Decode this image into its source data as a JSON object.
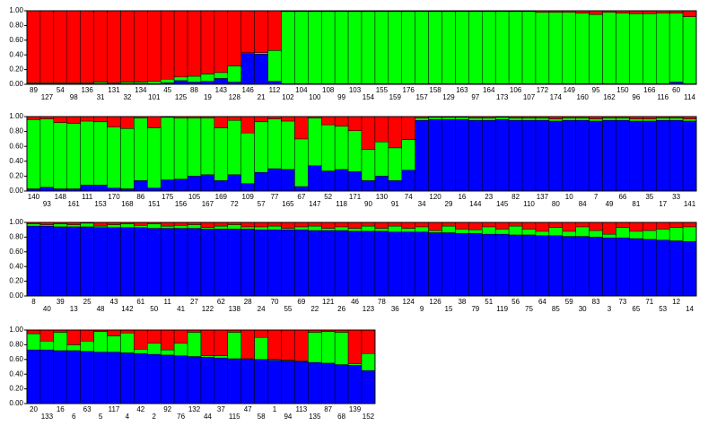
{
  "chart_data": [
    {
      "type": "bar",
      "stacked": true,
      "categories": [
        "89",
        "127",
        "54",
        "98",
        "136",
        "31",
        "131",
        "32",
        "134",
        "101",
        "45",
        "125",
        "88",
        "19",
        "143",
        "128",
        "146",
        "21",
        "112",
        "102",
        "104",
        "100",
        "108",
        "99",
        "103",
        "154",
        "155",
        "159",
        "176",
        "157",
        "158",
        "129",
        "163",
        "97",
        "164",
        "173",
        "106",
        "107",
        "172",
        "174",
        "149",
        "160",
        "95",
        "162",
        "150",
        "96",
        "166",
        "116",
        "60",
        "114"
      ],
      "series": [
        {
          "color": "#0000ff",
          "values": [
            0.01,
            0.01,
            0.01,
            0.01,
            0.01,
            0.01,
            0.01,
            0.01,
            0.01,
            0.01,
            0.02,
            0.05,
            0.03,
            0.04,
            0.08,
            0.03,
            0.42,
            0.41,
            0.04,
            0.01,
            0.01,
            0.01,
            0.01,
            0.01,
            0.01,
            0.01,
            0.01,
            0.01,
            0.01,
            0.01,
            0.01,
            0.01,
            0.01,
            0.01,
            0.01,
            0.01,
            0.01,
            0.01,
            0.01,
            0.01,
            0.01,
            0.01,
            0.01,
            0.01,
            0.01,
            0.01,
            0.01,
            0.01,
            0.03,
            0.01
          ]
        },
        {
          "color": "#00ff00",
          "values": [
            0.01,
            0.01,
            0.01,
            0.01,
            0.01,
            0.02,
            0.01,
            0.02,
            0.02,
            0.03,
            0.05,
            0.05,
            0.08,
            0.1,
            0.08,
            0.22,
            0.01,
            0.02,
            0.42,
            0.98,
            0.98,
            0.98,
            0.98,
            0.98,
            0.98,
            0.98,
            0.98,
            0.98,
            0.98,
            0.98,
            0.98,
            0.98,
            0.98,
            0.98,
            0.98,
            0.98,
            0.98,
            0.98,
            0.97,
            0.97,
            0.97,
            0.96,
            0.94,
            0.97,
            0.96,
            0.95,
            0.95,
            0.96,
            0.94,
            0.91
          ]
        },
        {
          "color": "#ff0000",
          "values": [
            0.98,
            0.98,
            0.98,
            0.98,
            0.98,
            0.97,
            0.98,
            0.97,
            0.97,
            0.96,
            0.93,
            0.9,
            0.89,
            0.86,
            0.84,
            0.75,
            0.57,
            0.57,
            0.54,
            0.01,
            0.01,
            0.01,
            0.01,
            0.01,
            0.01,
            0.01,
            0.01,
            0.01,
            0.01,
            0.01,
            0.01,
            0.01,
            0.01,
            0.01,
            0.01,
            0.01,
            0.01,
            0.01,
            0.02,
            0.02,
            0.02,
            0.03,
            0.05,
            0.02,
            0.03,
            0.04,
            0.04,
            0.03,
            0.03,
            0.08
          ]
        }
      ],
      "ylim": [
        0,
        1
      ],
      "yticks": [
        {
          "value": 0,
          "label": "0.00"
        },
        {
          "value": 0.2,
          "label": "0.20"
        },
        {
          "value": 0.4,
          "label": "0.40"
        },
        {
          "value": 0.6,
          "label": "0.60"
        },
        {
          "value": 0.8,
          "label": "0.80"
        },
        {
          "value": 1,
          "label": "1.00"
        }
      ]
    },
    {
      "type": "bar",
      "stacked": true,
      "categories": [
        "140",
        "93",
        "148",
        "161",
        "111",
        "153",
        "170",
        "168",
        "86",
        "151",
        "175",
        "156",
        "105",
        "167",
        "169",
        "72",
        "109",
        "57",
        "77",
        "165",
        "67",
        "147",
        "52",
        "118",
        "171",
        "90",
        "130",
        "91",
        "74",
        "34",
        "120",
        "29",
        "16",
        "144",
        "23",
        "145",
        "82",
        "110",
        "137",
        "80",
        "10",
        "84",
        "7",
        "49",
        "66",
        "81",
        "35",
        "17",
        "33",
        "141"
      ],
      "series": [
        {
          "color": "#0000ff",
          "values": [
            0.03,
            0.05,
            0.03,
            0.03,
            0.08,
            0.08,
            0.04,
            0.03,
            0.14,
            0.04,
            0.15,
            0.16,
            0.2,
            0.22,
            0.14,
            0.22,
            0.1,
            0.25,
            0.3,
            0.29,
            0.06,
            0.34,
            0.27,
            0.29,
            0.26,
            0.14,
            0.2,
            0.14,
            0.28,
            0.95,
            0.96,
            0.96,
            0.96,
            0.95,
            0.95,
            0.96,
            0.95,
            0.95,
            0.95,
            0.94,
            0.95,
            0.95,
            0.94,
            0.95,
            0.95,
            0.94,
            0.94,
            0.95,
            0.95,
            0.94
          ]
        },
        {
          "color": "#00ff00",
          "values": [
            0.93,
            0.92,
            0.89,
            0.88,
            0.86,
            0.85,
            0.82,
            0.81,
            0.84,
            0.81,
            0.84,
            0.82,
            0.78,
            0.76,
            0.71,
            0.73,
            0.68,
            0.68,
            0.67,
            0.65,
            0.64,
            0.64,
            0.62,
            0.58,
            0.55,
            0.42,
            0.46,
            0.44,
            0.41,
            0.03,
            0.03,
            0.03,
            0.03,
            0.03,
            0.03,
            0.03,
            0.03,
            0.03,
            0.03,
            0.03,
            0.03,
            0.03,
            0.03,
            0.03,
            0.03,
            0.03,
            0.03,
            0.03,
            0.03,
            0.03
          ]
        },
        {
          "color": "#ff0000",
          "values": [
            0.04,
            0.03,
            0.08,
            0.09,
            0.06,
            0.07,
            0.14,
            0.16,
            0.02,
            0.15,
            0.01,
            0.02,
            0.02,
            0.02,
            0.15,
            0.05,
            0.22,
            0.07,
            0.03,
            0.06,
            0.3,
            0.02,
            0.11,
            0.13,
            0.19,
            0.44,
            0.34,
            0.42,
            0.31,
            0.02,
            0.01,
            0.01,
            0.01,
            0.02,
            0.02,
            0.01,
            0.02,
            0.02,
            0.02,
            0.03,
            0.02,
            0.02,
            0.03,
            0.02,
            0.02,
            0.03,
            0.03,
            0.02,
            0.02,
            0.03
          ]
        }
      ],
      "ylim": [
        0,
        1
      ],
      "yticks": [
        {
          "value": 0,
          "label": "0.00"
        },
        {
          "value": 0.2,
          "label": "0.20"
        },
        {
          "value": 0.4,
          "label": "0.40"
        },
        {
          "value": 0.6,
          "label": "0.60"
        },
        {
          "value": 0.8,
          "label": "0.80"
        },
        {
          "value": 1,
          "label": "1.00"
        }
      ]
    },
    {
      "type": "bar",
      "stacked": true,
      "categories": [
        "8",
        "40",
        "39",
        "13",
        "25",
        "48",
        "43",
        "142",
        "61",
        "50",
        "11",
        "41",
        "27",
        "122",
        "62",
        "138",
        "28",
        "24",
        "70",
        "55",
        "69",
        "22",
        "121",
        "26",
        "46",
        "123",
        "78",
        "36",
        "124",
        "9",
        "126",
        "15",
        "38",
        "79",
        "51",
        "119",
        "56",
        "75",
        "64",
        "85",
        "59",
        "30",
        "83",
        "3",
        "73",
        "65",
        "71",
        "53",
        "12",
        "14"
      ],
      "series": [
        {
          "color": "#0000ff",
          "values": [
            0.95,
            0.95,
            0.94,
            0.94,
            0.94,
            0.93,
            0.93,
            0.93,
            0.93,
            0.92,
            0.92,
            0.92,
            0.92,
            0.91,
            0.91,
            0.91,
            0.91,
            0.9,
            0.9,
            0.9,
            0.9,
            0.89,
            0.89,
            0.89,
            0.88,
            0.88,
            0.88,
            0.87,
            0.87,
            0.87,
            0.86,
            0.86,
            0.85,
            0.85,
            0.84,
            0.84,
            0.83,
            0.83,
            0.82,
            0.82,
            0.81,
            0.81,
            0.8,
            0.79,
            0.79,
            0.78,
            0.77,
            0.76,
            0.75,
            0.74
          ]
        },
        {
          "color": "#00ff00",
          "values": [
            0.03,
            0.02,
            0.04,
            0.03,
            0.05,
            0.02,
            0.04,
            0.05,
            0.03,
            0.06,
            0.03,
            0.04,
            0.05,
            0.02,
            0.04,
            0.06,
            0.03,
            0.04,
            0.05,
            0.02,
            0.04,
            0.06,
            0.03,
            0.05,
            0.04,
            0.07,
            0.04,
            0.08,
            0.05,
            0.07,
            0.03,
            0.09,
            0.06,
            0.05,
            0.1,
            0.07,
            0.12,
            0.08,
            0.06,
            0.11,
            0.07,
            0.13,
            0.09,
            0.05,
            0.14,
            0.1,
            0.12,
            0.15,
            0.18,
            0.2
          ]
        },
        {
          "color": "#ff0000",
          "values": [
            0.02,
            0.03,
            0.02,
            0.03,
            0.01,
            0.05,
            0.03,
            0.02,
            0.04,
            0.02,
            0.05,
            0.04,
            0.03,
            0.07,
            0.05,
            0.03,
            0.06,
            0.06,
            0.05,
            0.08,
            0.06,
            0.05,
            0.08,
            0.06,
            0.08,
            0.05,
            0.08,
            0.05,
            0.08,
            0.06,
            0.11,
            0.05,
            0.09,
            0.1,
            0.06,
            0.09,
            0.05,
            0.09,
            0.12,
            0.07,
            0.12,
            0.06,
            0.11,
            0.16,
            0.07,
            0.12,
            0.11,
            0.09,
            0.07,
            0.06
          ]
        }
      ],
      "ylim": [
        0,
        1
      ],
      "yticks": [
        {
          "value": 0,
          "label": "0.00"
        },
        {
          "value": 0.2,
          "label": "0.20"
        },
        {
          "value": 0.4,
          "label": "0.40"
        },
        {
          "value": 0.6,
          "label": "0.60"
        },
        {
          "value": 0.8,
          "label": "0.80"
        },
        {
          "value": 1,
          "label": "1.00"
        }
      ]
    },
    {
      "type": "bar",
      "stacked": true,
      "categories": [
        "20",
        "133",
        "16",
        "6",
        "63",
        "5",
        "117",
        "4",
        "42",
        "2",
        "92",
        "76",
        "132",
        "44",
        "37",
        "115",
        "47",
        "58",
        "1",
        "94",
        "113",
        "135",
        "87",
        "68",
        "139",
        "152"
      ],
      "series": [
        {
          "color": "#0000ff",
          "values": [
            0.73,
            0.73,
            0.72,
            0.72,
            0.71,
            0.7,
            0.7,
            0.69,
            0.68,
            0.67,
            0.66,
            0.65,
            0.64,
            0.63,
            0.62,
            0.61,
            0.6,
            0.6,
            0.59,
            0.58,
            0.57,
            0.56,
            0.55,
            0.53,
            0.52,
            0.45
          ]
        },
        {
          "color": "#00ff00",
          "values": [
            0.22,
            0.12,
            0.25,
            0.08,
            0.14,
            0.28,
            0.22,
            0.27,
            0.06,
            0.15,
            0.07,
            0.17,
            0.33,
            0.02,
            0.03,
            0.36,
            0.01,
            0.3,
            0.01,
            0.01,
            0.01,
            0.41,
            0.43,
            0.44,
            0.02,
            0.23
          ]
        },
        {
          "color": "#ff0000",
          "values": [
            0.05,
            0.15,
            0.03,
            0.2,
            0.15,
            0.02,
            0.08,
            0.04,
            0.26,
            0.18,
            0.27,
            0.18,
            0.03,
            0.35,
            0.35,
            0.03,
            0.39,
            0.1,
            0.4,
            0.41,
            0.42,
            0.03,
            0.02,
            0.03,
            0.46,
            0.32
          ]
        }
      ],
      "ylim": [
        0,
        1
      ],
      "yticks": [
        {
          "value": 0,
          "label": "0.00"
        },
        {
          "value": 0.2,
          "label": "0.20"
        },
        {
          "value": 0.4,
          "label": "0.40"
        },
        {
          "value": 0.6,
          "label": "0.60"
        },
        {
          "value": 0.8,
          "label": "0.80"
        },
        {
          "value": 1,
          "label": "1.00"
        }
      ]
    }
  ]
}
